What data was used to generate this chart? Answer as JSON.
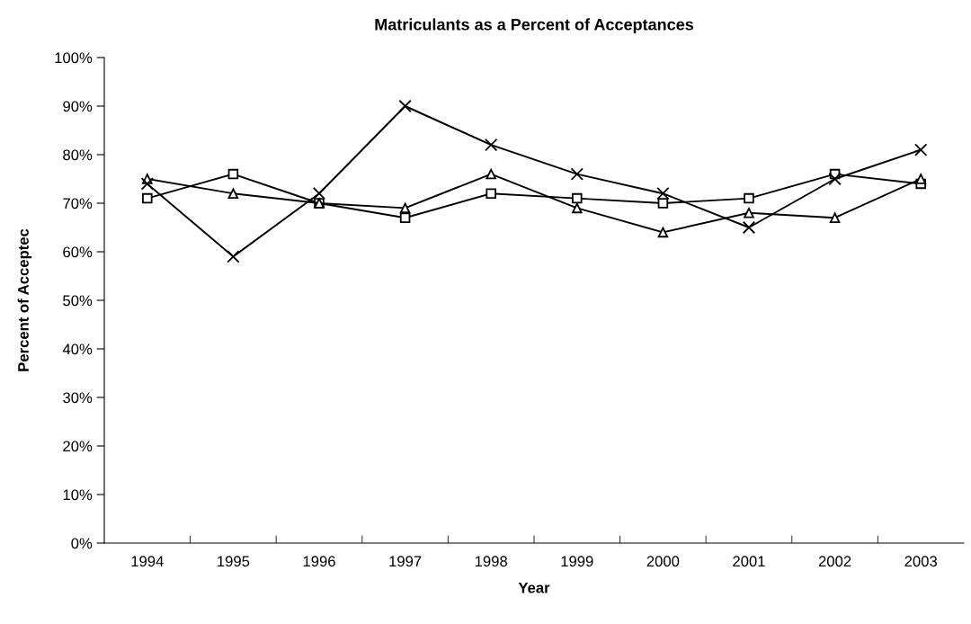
{
  "chart_data": {
    "type": "line",
    "title": "Matriculants as a Percent of Acceptances",
    "xlabel": "Year",
    "ylabel": "Percent of Acceptec",
    "categories": [
      "1994",
      "1995",
      "1996",
      "1997",
      "1998",
      "1999",
      "2000",
      "2001",
      "2002",
      "2003"
    ],
    "series": [
      {
        "color": "#000000",
        "marker": "square",
        "values": [
          71,
          76,
          70,
          67,
          72,
          71,
          70,
          71,
          76,
          74
        ]
      },
      {
        "color": "#000000",
        "marker": "triangle",
        "values": [
          75,
          72,
          70,
          69,
          76,
          69,
          64,
          68,
          67,
          75
        ]
      },
      {
        "color": "#000000",
        "marker": "cross",
        "values": [
          74,
          59,
          72,
          90,
          82,
          76,
          72,
          65,
          75,
          81
        ]
      }
    ],
    "ylim": [
      0,
      100
    ],
    "yticks": [
      {
        "value": 0,
        "label": "0%"
      },
      {
        "value": 10,
        "label": "10%"
      },
      {
        "value": 20,
        "label": "20%"
      },
      {
        "value": 30,
        "label": "30%"
      },
      {
        "value": 40,
        "label": "40%"
      },
      {
        "value": 50,
        "label": "50%"
      },
      {
        "value": 60,
        "label": "60%"
      },
      {
        "value": 70,
        "label": "70%"
      },
      {
        "value": 80,
        "label": "80%"
      },
      {
        "value": 90,
        "label": "90%"
      },
      {
        "value": 100,
        "label": "100%"
      }
    ],
    "grid": false,
    "legend": false,
    "line_style": "solid"
  }
}
